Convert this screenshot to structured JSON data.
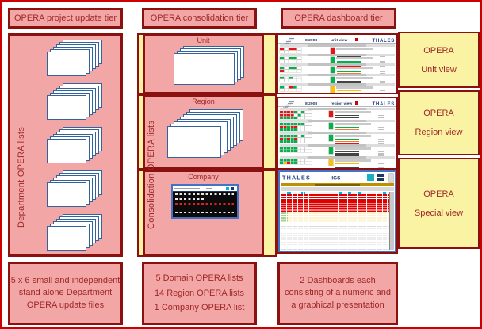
{
  "colors": {
    "outer_border": "#CC0000",
    "dark_red": "#8B1010",
    "text_red": "#A02828",
    "pink": "#F2A6A6",
    "yellow": "#FAF3A3",
    "doc_blue": "#33639C",
    "screenshot_blue": "#4472C4",
    "thales_blue": "#1F3C88"
  },
  "left_tier": {
    "header": "OPERA project update tier",
    "vertical_label": "Department OPERA lists",
    "stack_count": 5,
    "pages_per_stack": 6,
    "footer_lines": [
      "5 x 6 small and independent",
      "stand alone Department",
      "OPERA update files"
    ]
  },
  "middle_tier": {
    "header": "OPERA consolidation tier",
    "vertical_label": "Consolidation OPERA lists",
    "boxes": [
      {
        "label": "Unit",
        "pages": 4
      },
      {
        "label": "Region",
        "pages": 8
      },
      {
        "label": "Company"
      }
    ],
    "footer_lines": [
      "5 Domain OPERA lists",
      "14 Region OPERA lists",
      "1 Company OPERA list"
    ]
  },
  "right_tier": {
    "header": "OPERA dashboard tier",
    "rows": [
      {
        "label_line1": "OPERA",
        "label_line2": "Unit view"
      },
      {
        "label_line1": "OPERA",
        "label_line2": "Region view"
      },
      {
        "label_line1": "OPERA",
        "label_line2": "Special view"
      }
    ],
    "footer_lines": [
      "2 Dashboards each",
      "consisting of a numeric and",
      "a graphical presentation"
    ]
  },
  "dashboards": {
    "unit": {
      "period": "8 2008",
      "view": "unit view",
      "brand": "THALES",
      "sections": [
        {
          "rows": [
            "r.rr.",
            "....."
          ],
          "side": "r",
          "lines": "kkk"
        },
        {
          "rows": [
            "g.gg.",
            "....."
          ],
          "side": "g",
          "lines": "gor"
        },
        {
          "rows": [
            "g.gg.",
            "r...."
          ],
          "side": "g",
          "lines": "gor"
        },
        {
          "rows": [
            "g.g..",
            "....."
          ],
          "side": "g",
          "lines": "kk"
        },
        {
          "rows": [
            "g.rg.",
            "....."
          ],
          "side": "y",
          "lines": "ykk"
        }
      ]
    },
    "region": {
      "period": "8 2008",
      "view": "region view",
      "brand": "THALES",
      "sections": [
        {
          "rows": [
            "rrrrg.g..",
            "rrrr.g...",
            "ggggg...."
          ],
          "side": "r",
          "lines": "kk"
        },
        {
          "rows": [
            "ggggggg..",
            "rrgrr....",
            "ggggg...."
          ],
          "side": "g",
          "lines": "gor"
        },
        {
          "rows": [
            "ggggg.g..",
            "rgrgr....",
            "ggggg...."
          ],
          "side": "g",
          "lines": "gor"
        },
        {
          "rows": [
            "ggggg....",
            "ggggg...."
          ],
          "side": "g",
          "lines": "kkk"
        },
        {
          "rows": [
            "ggggg....",
            "gyrgg...."
          ],
          "side": "y",
          "lines": "ykk"
        }
      ]
    },
    "special": {
      "brand": "THALES",
      "center_label": "IGS",
      "bands": [
        {
          "type": "red",
          "rows": 8
        },
        {
          "type": "pale",
          "rows": 4
        },
        {
          "type": "white",
          "rows": 12
        }
      ]
    }
  }
}
